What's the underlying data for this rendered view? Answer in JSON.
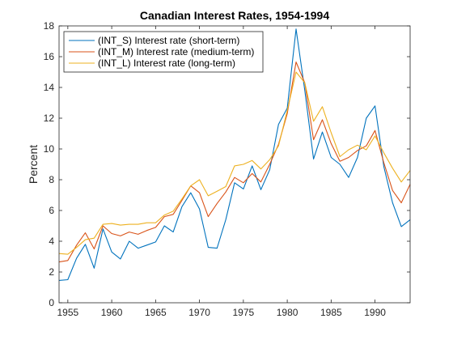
{
  "chart_data": {
    "type": "line",
    "title": "Canadian Interest Rates, 1954-1994",
    "xlabel": "",
    "ylabel": "Percent",
    "xlim": [
      1954,
      1994
    ],
    "ylim": [
      0,
      18
    ],
    "x_ticks": [
      1955,
      1960,
      1965,
      1970,
      1975,
      1980,
      1985,
      1990
    ],
    "y_ticks": [
      0,
      2,
      4,
      6,
      8,
      10,
      12,
      14,
      16,
      18
    ],
    "grid": false,
    "legend_position": "top-left",
    "x": [
      1954,
      1955,
      1956,
      1957,
      1958,
      1959,
      1960,
      1961,
      1962,
      1963,
      1964,
      1965,
      1966,
      1967,
      1968,
      1969,
      1970,
      1971,
      1972,
      1973,
      1974,
      1975,
      1976,
      1977,
      1978,
      1979,
      1980,
      1981,
      1982,
      1983,
      1984,
      1985,
      1986,
      1987,
      1988,
      1989,
      1990,
      1991,
      1992,
      1993,
      1994
    ],
    "series": [
      {
        "name": "(INT_S) Interest rate (short-term)",
        "color": "#0072BD",
        "values": [
          1.45,
          1.5,
          2.9,
          3.8,
          2.25,
          4.8,
          3.3,
          2.85,
          4.0,
          3.55,
          3.75,
          3.95,
          5.0,
          4.6,
          6.25,
          7.15,
          6.1,
          3.6,
          3.55,
          5.4,
          7.8,
          7.4,
          8.9,
          7.35,
          8.65,
          11.6,
          12.65,
          17.8,
          13.8,
          9.35,
          11.1,
          9.45,
          9.0,
          8.15,
          9.45,
          12.0,
          12.8,
          8.85,
          6.5,
          4.95,
          5.4
        ]
      },
      {
        "name": "(INT_M) Interest rate (medium-term)",
        "color": "#D95319",
        "values": [
          2.65,
          2.75,
          3.75,
          4.55,
          3.5,
          5.0,
          4.5,
          4.35,
          4.6,
          4.45,
          4.7,
          4.9,
          5.6,
          5.75,
          6.65,
          7.6,
          7.15,
          5.6,
          6.45,
          7.2,
          8.15,
          7.8,
          8.4,
          7.85,
          9.0,
          10.3,
          12.3,
          15.65,
          14.3,
          10.6,
          11.9,
          10.35,
          9.2,
          9.45,
          9.9,
          10.2,
          11.2,
          9.1,
          7.3,
          6.5,
          7.7
        ]
      },
      {
        "name": "(INT_L) Interest rate (long-term)",
        "color": "#EDB120",
        "values": [
          3.2,
          3.15,
          3.6,
          4.1,
          4.2,
          5.1,
          5.15,
          5.05,
          5.1,
          5.1,
          5.2,
          5.2,
          5.7,
          5.95,
          6.75,
          7.6,
          8.0,
          6.95,
          7.25,
          7.55,
          8.9,
          9.0,
          9.25,
          8.7,
          9.3,
          10.2,
          12.5,
          15.0,
          14.3,
          11.8,
          12.75,
          11.05,
          9.5,
          9.95,
          10.25,
          9.95,
          10.85,
          9.75,
          8.75,
          7.85,
          8.6
        ]
      }
    ]
  }
}
